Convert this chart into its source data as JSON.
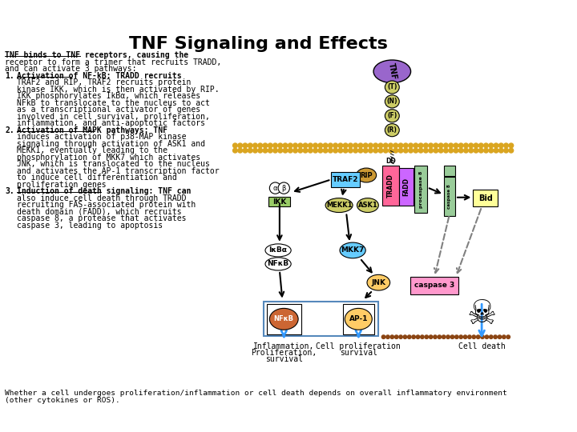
{
  "title": "TNF Signaling and Effects",
  "bg_color": "#ffffff",
  "intro_text_bold_underline": "TNF binds to TNF receptors",
  "item1_bold_underline": "Activation of NF-kB",
  "item2_bold_underline": "Activation of MAPK pathways",
  "item3_bold_underline": "Induction of death signaling:",
  "membrane_color": "#DAA520",
  "tnf_color": "#9966CC",
  "tnfr_color": "#CCCC66",
  "tradd_color": "#FF6699",
  "traf2_color": "#66CCFF",
  "fadd_color": "#CC66FF",
  "rip_color": "#CC9933",
  "ikk_color": "#99CC66",
  "mekk1_color": "#CCCC66",
  "ask1_color": "#CCCC66",
  "mkk7_color": "#66CCFF",
  "jnk_color": "#FFCC66",
  "nfkb_color": "#CC6633",
  "ap1_color": "#FFCC66",
  "caspase8_color": "#99CC99",
  "caspase3_color": "#FF99CC",
  "bid_color": "#FFFF99",
  "item1_lines": [
    "TRAF2 and RIP, TRAF2 recruits protein",
    "kinase IKK, which is then activated by RIP.",
    "IKK phosphorylates IkBα, which releases",
    "NFkB to translocate to the nucleus to act",
    "as a transcriptional activator of genes",
    "involved in cell survival, proliferation,",
    "inflammation, and anti-apoptotic factors"
  ],
  "item2_lines": [
    "induces activation of p38-MAP kinase",
    "signaling through activation of ASK1 and",
    "MEKK1, eventually leading to the",
    "phosphorylation of MKK7 which activates",
    "JNK, which is translocated to the nucleus",
    "and activates the AP-1 transcription factor",
    "to induce cell differentiation and",
    "proliferation genes"
  ],
  "item3_lines": [
    "also induce cell death through TRADD",
    "recruiting FAS-associated protein with",
    "death domain (FADD), which recruits",
    "caspase 8, a protease that activates",
    "caspase 3, leading to apoptosis"
  ],
  "footer_line1": "Whether a cell undergoes proliferation/inflammation or cell death depends on overall inflammatory environment",
  "footer_line2": "(other cytokines or ROS)."
}
